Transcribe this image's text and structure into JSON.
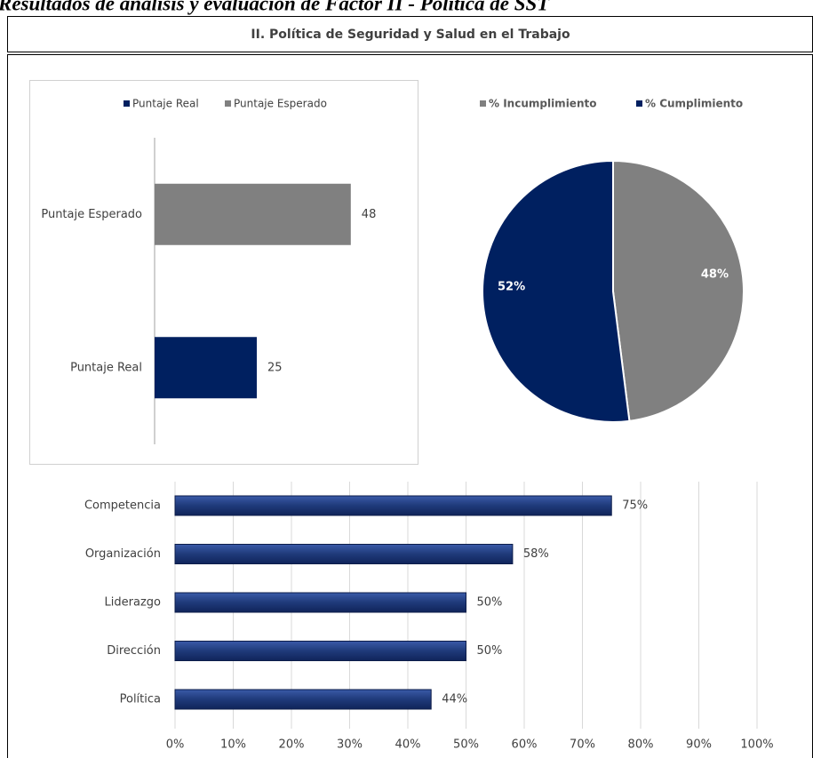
{
  "heading": "Resultados de análisis y evaluación de Factor II - Política de SST",
  "panel_title": "II. Política de Seguridad y Salud en el Trabajo",
  "chart_data": [
    {
      "type": "bar",
      "orientation": "horizontal",
      "categories": [
        "Puntaje Real",
        "Puntaje Esperado"
      ],
      "series": [
        {
          "name": "Puntaje Real",
          "color": "#002060",
          "values": [
            25,
            null
          ]
        },
        {
          "name": "Puntaje Esperado",
          "color": "#808080",
          "values": [
            null,
            48
          ]
        }
      ],
      "xlim": [
        0,
        60
      ],
      "legend": "top"
    },
    {
      "type": "pie",
      "categories": [
        "% Incumplimiento",
        "% Cumplimiento"
      ],
      "values": [
        48,
        52
      ],
      "value_labels": [
        "48%",
        "52%"
      ],
      "colors": [
        "#808080",
        "#002060"
      ],
      "legend": "top"
    },
    {
      "type": "bar",
      "orientation": "horizontal",
      "categories": [
        "Competencia",
        "Organización",
        "Liderazgo",
        "Dirección",
        "Política"
      ],
      "values": [
        75,
        58,
        50,
        50,
        44
      ],
      "value_labels": [
        "75%",
        "58%",
        "50%",
        "50%",
        "44%"
      ],
      "color": "#1f3a7a",
      "xlim": [
        0,
        100
      ],
      "grid": true,
      "xticks": [
        {
          "value": 0,
          "label": "0%"
        },
        {
          "value": 10,
          "label": "10%"
        },
        {
          "value": 20,
          "label": "20%"
        },
        {
          "value": 30,
          "label": "30%"
        },
        {
          "value": 40,
          "label": "40%"
        },
        {
          "value": 50,
          "label": "50%"
        },
        {
          "value": 60,
          "label": "60%"
        },
        {
          "value": 70,
          "label": "70%"
        },
        {
          "value": 80,
          "label": "80%"
        },
        {
          "value": 90,
          "label": "90%"
        },
        {
          "value": 100,
          "label": "100%"
        }
      ]
    }
  ]
}
